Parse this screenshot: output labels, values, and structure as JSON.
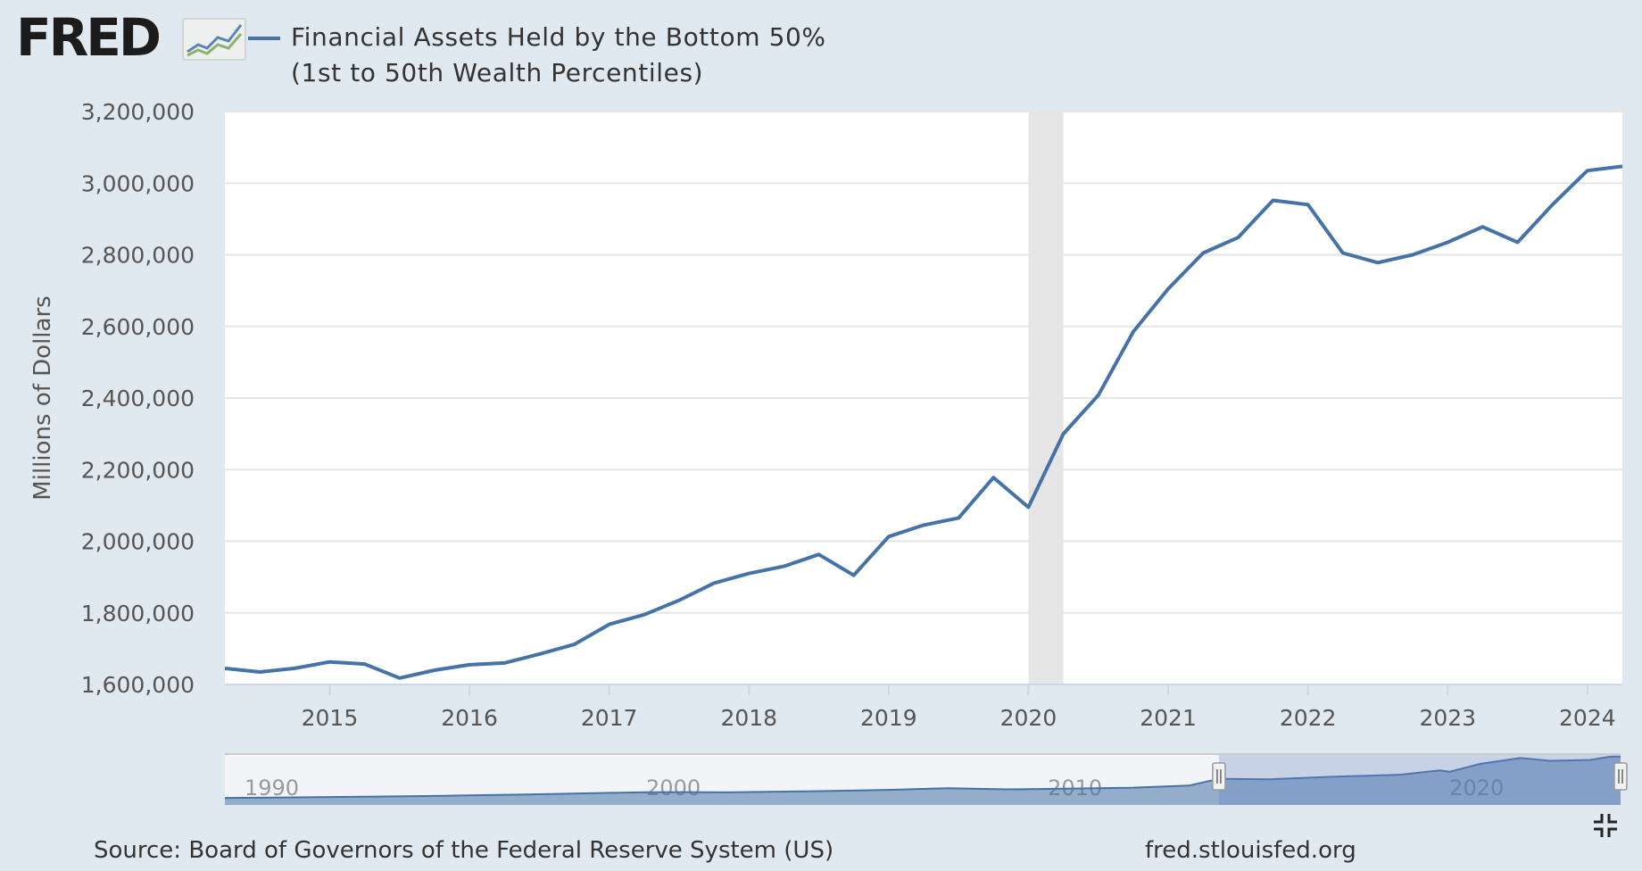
{
  "brand": {
    "logo_text": "FRED",
    "logo_icon": "line-chart-icon"
  },
  "chart_data": {
    "type": "line",
    "title": "",
    "series": [
      {
        "name": "Financial Assets Held by the Bottom 50% (1st to 50th Wealth Percentiles)",
        "color": "#4572a7",
        "points": [
          [
            "2014 Q2",
            1645000
          ],
          [
            "2014 Q3",
            1635000
          ],
          [
            "2014 Q4",
            1645000
          ],
          [
            "2015 Q1",
            1663000
          ],
          [
            "2015 Q2",
            1657000
          ],
          [
            "2015 Q3",
            1618000
          ],
          [
            "2015 Q4",
            1640000
          ],
          [
            "2016 Q1",
            1655000
          ],
          [
            "2016 Q2",
            1660000
          ],
          [
            "2016 Q3",
            1685000
          ],
          [
            "2016 Q4",
            1712000
          ],
          [
            "2017 Q1",
            1768000
          ],
          [
            "2017 Q2",
            1795000
          ],
          [
            "2017 Q3",
            1835000
          ],
          [
            "2017 Q4",
            1883000
          ],
          [
            "2018 Q1",
            1910000
          ],
          [
            "2018 Q2",
            1930000
          ],
          [
            "2018 Q3",
            1963000
          ],
          [
            "2018 Q4",
            1905000
          ],
          [
            "2019 Q1",
            2013000
          ],
          [
            "2019 Q2",
            2045000
          ],
          [
            "2019 Q3",
            2065000
          ],
          [
            "2019 Q4",
            2178000
          ],
          [
            "2020 Q1",
            2095000
          ],
          [
            "2020 Q2",
            2300000
          ],
          [
            "2020 Q3",
            2408000
          ],
          [
            "2020 Q4",
            2585000
          ],
          [
            "2021 Q1",
            2705000
          ],
          [
            "2021 Q2",
            2805000
          ],
          [
            "2021 Q3",
            2848000
          ],
          [
            "2021 Q4",
            2952000
          ],
          [
            "2022 Q1",
            2940000
          ],
          [
            "2022 Q2",
            2805000
          ],
          [
            "2022 Q3",
            2778000
          ],
          [
            "2022 Q4",
            2800000
          ],
          [
            "2023 Q1",
            2835000
          ],
          [
            "2023 Q2",
            2878000
          ],
          [
            "2023 Q3",
            2835000
          ],
          [
            "2023 Q4",
            2940000
          ],
          [
            "2024 Q1",
            3035000
          ],
          [
            "2024 Q2",
            3047000
          ]
        ]
      }
    ],
    "x_range": [
      "2014 Q2",
      "2024 Q2"
    ],
    "xticks": [
      "2015",
      "2016",
      "2017",
      "2018",
      "2019",
      "2020",
      "2021",
      "2022",
      "2023",
      "2024"
    ],
    "ylabel": "Millions of Dollars",
    "ylim": [
      1600000,
      3200000
    ],
    "yticks": [
      "1,600,000",
      "1,800,000",
      "2,000,000",
      "2,200,000",
      "2,400,000",
      "2,600,000",
      "2,800,000",
      "3,000,000",
      "3,200,000"
    ],
    "recession": {
      "start": "2020 Q1",
      "end": "2020 Q2"
    },
    "grid": true,
    "legend": "top-left",
    "navigator": {
      "labels": [
        "1990",
        "2000",
        "2010",
        "2020"
      ],
      "x_range": [
        "1989 Q3",
        "2024 Q2"
      ],
      "selected": [
        "2014 Q2",
        "2024 Q2"
      ],
      "series_values": [
        [
          1989.5,
          440000
        ],
        [
          1991,
          470000
        ],
        [
          1993,
          520000
        ],
        [
          1995,
          580000
        ],
        [
          1997,
          660000
        ],
        [
          1999,
          760000
        ],
        [
          2000,
          800000
        ],
        [
          2001,
          810000
        ],
        [
          2002,
          790000
        ],
        [
          2004,
          860000
        ],
        [
          2006,
          950000
        ],
        [
          2007.5,
          1050000
        ],
        [
          2009,
          980000
        ],
        [
          2010,
          1010000
        ],
        [
          2012,
          1080000
        ],
        [
          2013.5,
          1220000
        ],
        [
          2014.25,
          1645000
        ],
        [
          2015.5,
          1618000
        ],
        [
          2017,
          1768000
        ],
        [
          2018.75,
          1905000
        ],
        [
          2019.75,
          2178000
        ],
        [
          2020,
          2095000
        ],
        [
          2020.75,
          2585000
        ],
        [
          2021.75,
          2952000
        ],
        [
          2022.5,
          2778000
        ],
        [
          2023.5,
          2835000
        ],
        [
          2024,
          3035000
        ],
        [
          2024.25,
          3047000
        ]
      ]
    }
  },
  "footer": {
    "source": "Source: Board of Governors of the Federal Reserve System (US)",
    "site": "fred.stlouisfed.org"
  },
  "controls": {
    "collapse_icon": "collapse-icon"
  }
}
